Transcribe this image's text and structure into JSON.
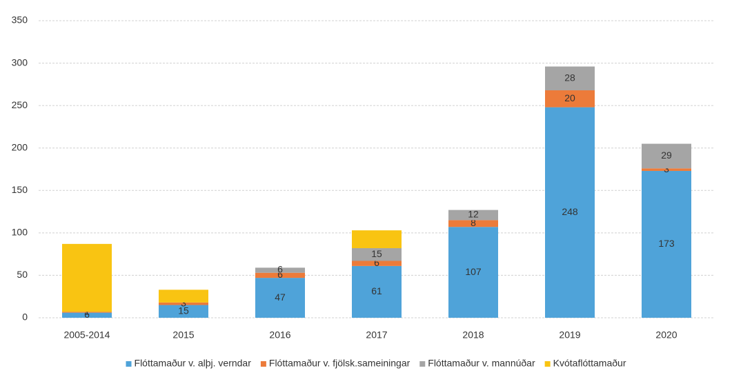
{
  "chart_data": {
    "type": "stacked-bar",
    "categories": [
      "2005-2014",
      "2015",
      "2016",
      "2017",
      "2018",
      "2019",
      "2020"
    ],
    "series": [
      {
        "name": "Flóttamaður v. alþj. verndar",
        "color": "#4fa3d9",
        "data_labels": true,
        "values": [
          6,
          15,
          47,
          61,
          107,
          248,
          173
        ]
      },
      {
        "name": "Flóttamaður v. fjölsk.sameiningar",
        "color": "#ec7b3a",
        "data_labels": true,
        "values": [
          1,
          3,
          6,
          6,
          8,
          20,
          3
        ]
      },
      {
        "name": "Flóttamaður v. mannúðar",
        "color": "#a5a5a5",
        "data_labels": true,
        "values": [
          null,
          null,
          6,
          15,
          12,
          28,
          29
        ]
      },
      {
        "name": "Kvótaflóttamaður",
        "color": "#f9c412",
        "data_labels": false,
        "values": [
          80,
          15,
          null,
          21,
          null,
          null,
          null
        ]
      }
    ],
    "ylim": [
      0,
      350
    ],
    "yticks": [
      0,
      50,
      100,
      150,
      200,
      250,
      300,
      350
    ],
    "grid": true,
    "legend": "bottom"
  }
}
